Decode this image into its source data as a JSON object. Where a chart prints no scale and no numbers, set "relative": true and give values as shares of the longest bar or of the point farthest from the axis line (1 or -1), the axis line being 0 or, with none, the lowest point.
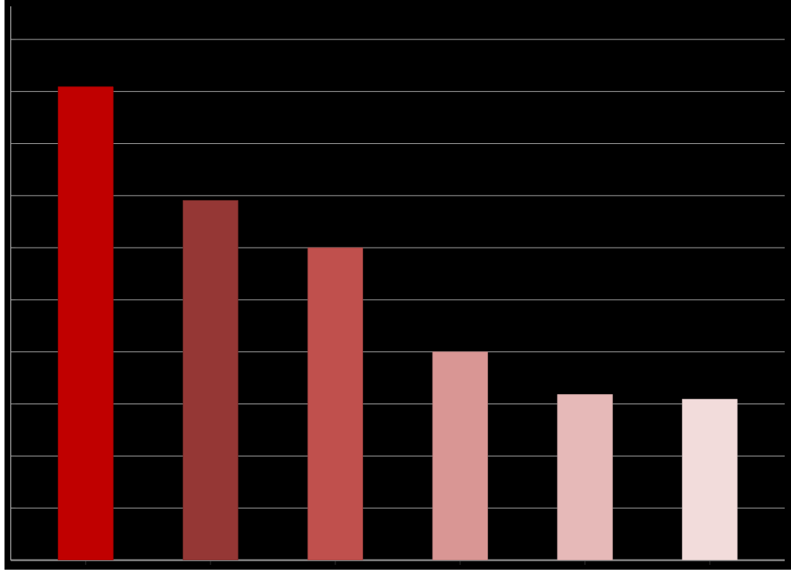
{
  "chart_data": {
    "type": "bar",
    "relative": true,
    "grid": "y",
    "categories": [
      null,
      null,
      null,
      null,
      null,
      null
    ],
    "values": [
      1,
      0.76,
      0.66,
      0.44,
      0.35,
      0.34
    ],
    "colors": [
      "#c00000",
      "#953735",
      "#c0504d",
      "#d99694",
      "#e6b9b8",
      "#f2dcdb"
    ]
  }
}
